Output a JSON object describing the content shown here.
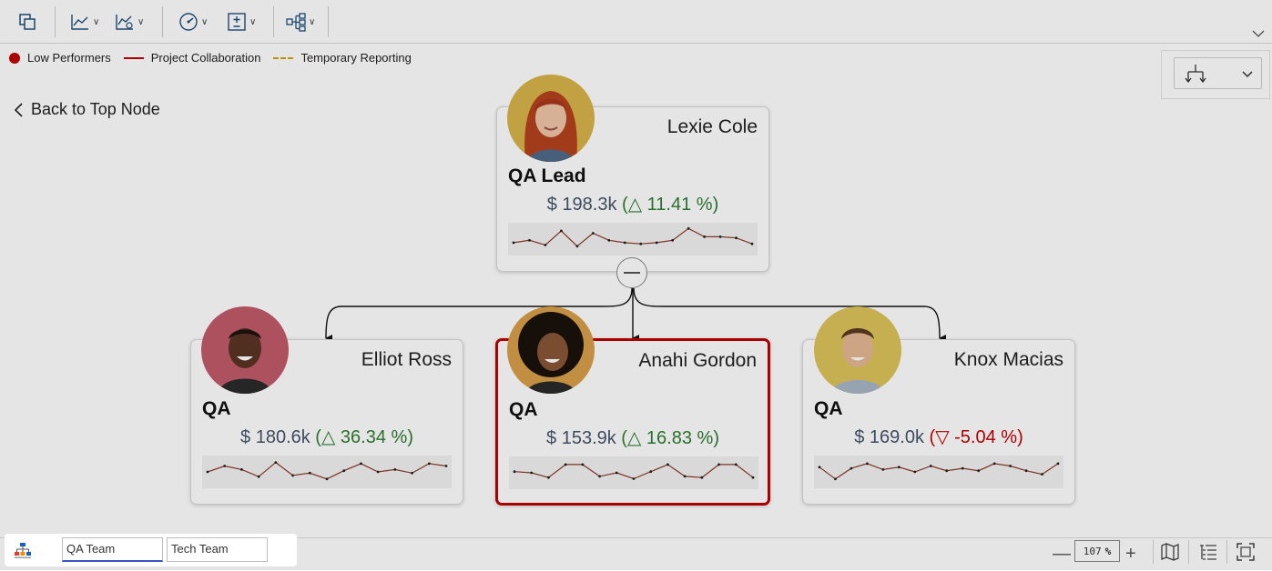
{
  "legend": [
    {
      "label": "Low Performers",
      "kind": "dot",
      "color": "#c00000"
    },
    {
      "label": "Project Collaboration",
      "kind": "solid-line",
      "color": "#c00000"
    },
    {
      "label": "Temporary Reporting",
      "kind": "dashed-line",
      "color": "#d4a017"
    }
  ],
  "navigation": {
    "back_label": "Back to Top Node"
  },
  "toolbar": {
    "buttons": [
      "export-icon",
      "line-chart-icon",
      "chart-settings-icon",
      "gauge-icon",
      "plus-minus-icon",
      "org-structure-icon"
    ]
  },
  "nodes": {
    "top": {
      "name": "Lexie Cole",
      "role": "QA Lead",
      "amount": "$ 198.3k",
      "pct": "11.41 %",
      "trend": "up",
      "trend_symbol": "△",
      "spark": [
        0.35,
        0.45,
        0.25,
        0.85,
        0.2,
        0.75,
        0.45,
        0.35,
        0.3,
        0.35,
        0.45,
        0.95,
        0.6,
        0.6,
        0.55,
        0.3
      ]
    },
    "children": [
      {
        "name": "Elliot Ross",
        "role": "QA",
        "amount": "$ 180.6k",
        "pct": "36.34 %",
        "trend": "up",
        "trend_symbol": "△",
        "spark": [
          0.5,
          0.75,
          0.6,
          0.3,
          0.9,
          0.35,
          0.45,
          0.2,
          0.55,
          0.85,
          0.5,
          0.6,
          0.45,
          0.85,
          0.75
        ]
      },
      {
        "name": "Anahi Gordon",
        "role": "QA",
        "amount": "$ 153.9k",
        "pct": "16.83 %",
        "trend": "up",
        "trend_symbol": "△",
        "spark": [
          0.55,
          0.5,
          0.3,
          0.85,
          0.85,
          0.35,
          0.5,
          0.25,
          0.55,
          0.85,
          0.35,
          0.3,
          0.85,
          0.85,
          0.3
        ]
      },
      {
        "name": "Knox Macias",
        "role": "QA",
        "amount": "$ 169.0k",
        "pct": "-5.04 %",
        "trend": "down",
        "trend_symbol": "▽",
        "spark": [
          0.7,
          0.2,
          0.65,
          0.85,
          0.6,
          0.7,
          0.5,
          0.75,
          0.55,
          0.65,
          0.55,
          0.85,
          0.75,
          0.55,
          0.4,
          0.85
        ]
      }
    ]
  },
  "tabs": [
    {
      "label": "QA Team",
      "active": true
    },
    {
      "label": "Tech Team",
      "active": false
    }
  ],
  "zoom": {
    "value": "107",
    "unit": "%"
  }
}
